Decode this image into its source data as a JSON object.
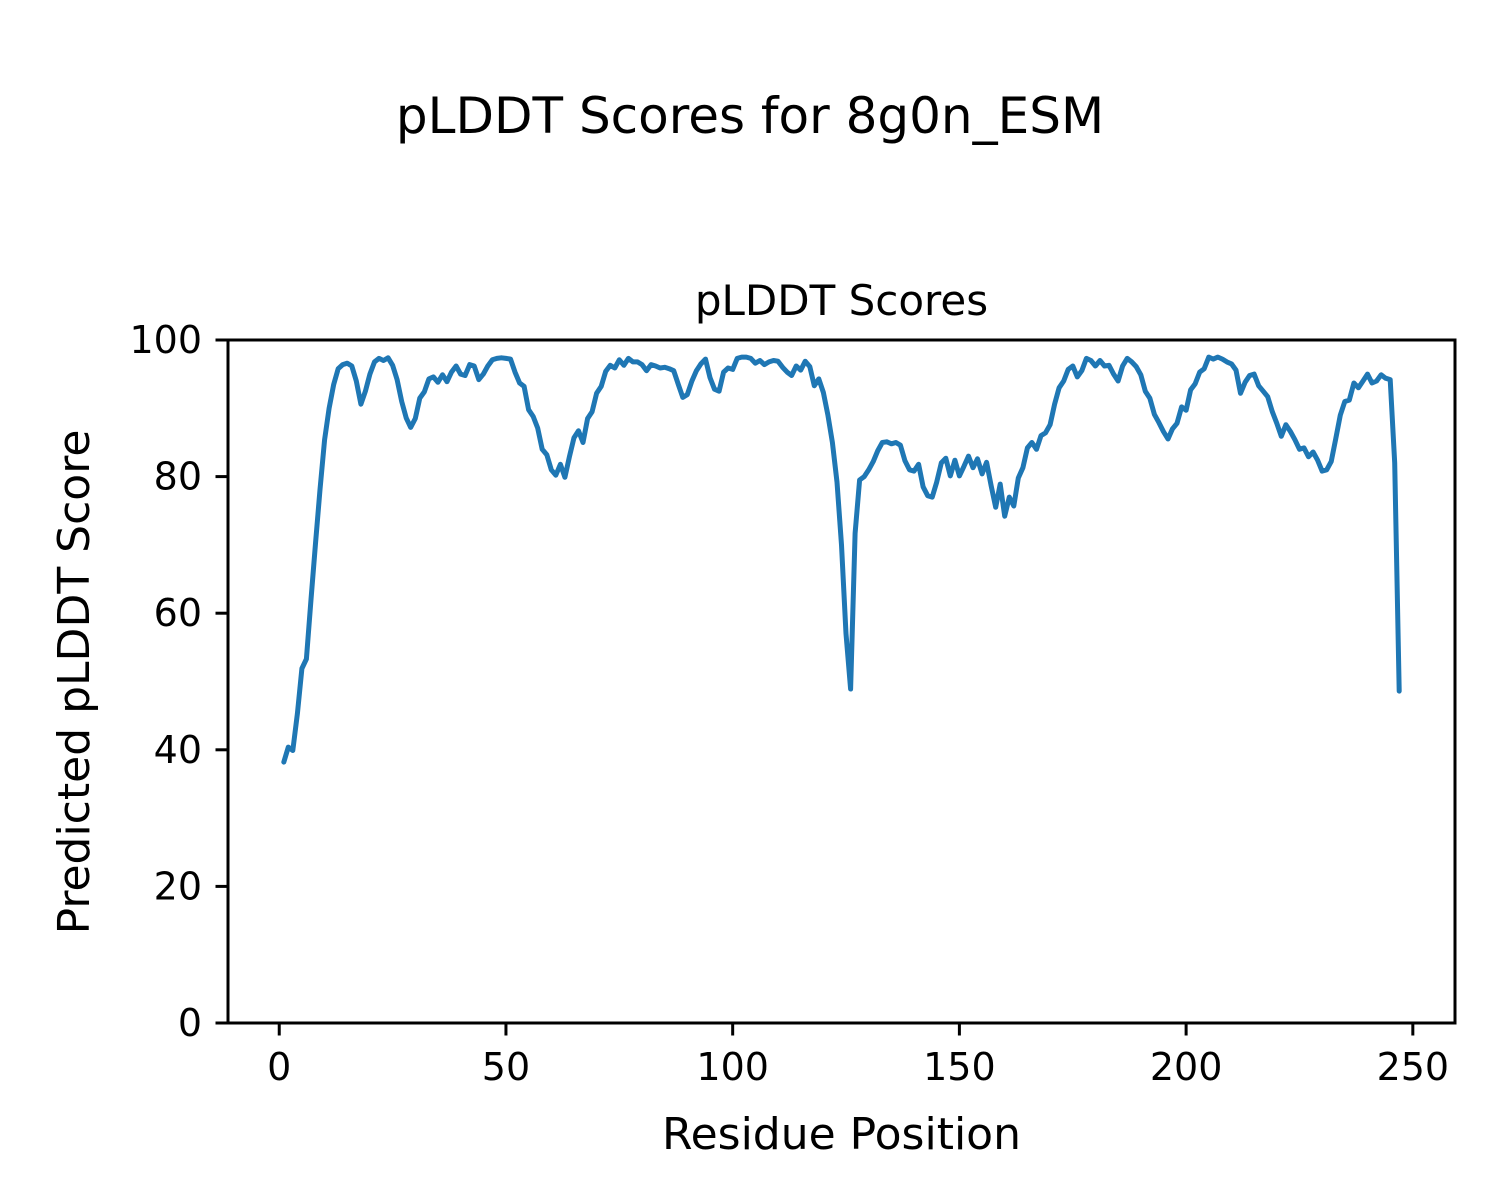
{
  "figure": {
    "suptitle": "pLDDT Scores for 8g0n_ESM",
    "background_color": "#ffffff",
    "text_color": "#000000"
  },
  "chart_data": {
    "type": "line",
    "title": "pLDDT Scores",
    "xlabel": "Residue Position",
    "ylabel": "Predicted pLDDT Score",
    "series_name": "pLDDT",
    "line_color": "#1f77b4",
    "grid": false,
    "legend_position": "none",
    "xlim": [
      -11.3,
      259.3
    ],
    "ylim": [
      0,
      100
    ],
    "xticks": [
      0,
      50,
      100,
      150,
      200,
      250
    ],
    "yticks": [
      0,
      20,
      40,
      60,
      80,
      100
    ],
    "x": [
      1,
      2,
      3,
      4,
      5,
      6,
      7,
      8,
      9,
      10,
      11,
      12,
      13,
      14,
      15,
      16,
      17,
      18,
      19,
      20,
      21,
      22,
      23,
      24,
      25,
      26,
      27,
      28,
      29,
      30,
      31,
      32,
      33,
      34,
      35,
      36,
      37,
      38,
      39,
      40,
      41,
      42,
      43,
      44,
      45,
      46,
      47,
      48,
      49,
      50,
      51,
      52,
      53,
      54,
      55,
      56,
      57,
      58,
      59,
      60,
      61,
      62,
      63,
      64,
      65,
      66,
      67,
      68,
      69,
      70,
      71,
      72,
      73,
      74,
      75,
      76,
      77,
      78,
      79,
      80,
      81,
      82,
      83,
      84,
      85,
      86,
      87,
      88,
      89,
      90,
      91,
      92,
      93,
      94,
      95,
      96,
      97,
      98,
      99,
      100,
      101,
      102,
      103,
      104,
      105,
      106,
      107,
      108,
      109,
      110,
      111,
      112,
      113,
      114,
      115,
      116,
      117,
      118,
      119,
      120,
      121,
      122,
      123,
      124,
      125,
      126,
      127,
      128,
      129,
      130,
      131,
      132,
      133,
      134,
      135,
      136,
      137,
      138,
      139,
      140,
      141,
      142,
      143,
      144,
      145,
      146,
      147,
      148,
      149,
      150,
      151,
      152,
      153,
      154,
      155,
      156,
      157,
      158,
      159,
      160,
      161,
      162,
      163,
      164,
      165,
      166,
      167,
      168,
      169,
      170,
      171,
      172,
      173,
      174,
      175,
      176,
      177,
      178,
      179,
      180,
      181,
      182,
      183,
      184,
      185,
      186,
      187,
      188,
      189,
      190,
      191,
      192,
      193,
      194,
      195,
      196,
      197,
      198,
      199,
      200,
      201,
      202,
      203,
      204,
      205,
      206,
      207,
      208,
      209,
      210,
      211,
      212,
      213,
      214,
      215,
      216,
      217,
      218,
      219,
      220,
      221,
      222,
      223,
      224,
      225,
      226,
      227,
      228,
      229,
      230,
      231,
      232,
      233,
      234,
      235,
      236,
      237,
      238,
      239,
      240,
      241,
      242,
      243,
      244,
      245,
      246,
      247
    ],
    "y": [
      38.2,
      40.4,
      39.9,
      45.3,
      51.9,
      53.3,
      62.0,
      70.2,
      78.1,
      85.4,
      90.0,
      93.5,
      95.8,
      96.4,
      96.6,
      96.2,
      94.0,
      90.6,
      92.5,
      95.0,
      96.8,
      97.3,
      97.0,
      97.4,
      96.3,
      94.2,
      91.0,
      88.6,
      87.2,
      88.5,
      91.5,
      92.4,
      94.3,
      94.6,
      93.8,
      94.9,
      93.9,
      95.3,
      96.2,
      95.0,
      94.8,
      96.4,
      96.2,
      94.2,
      95.0,
      96.2,
      97.1,
      97.3,
      97.4,
      97.3,
      97.2,
      95.3,
      93.7,
      93.2,
      89.8,
      88.8,
      87.1,
      84.0,
      83.2,
      81.0,
      80.2,
      81.8,
      79.9,
      82.9,
      85.7,
      86.7,
      85.0,
      88.5,
      89.5,
      92.2,
      93.2,
      95.4,
      96.3,
      95.9,
      97.1,
      96.3,
      97.3,
      96.8,
      96.8,
      96.4,
      95.5,
      96.4,
      96.2,
      95.9,
      96.0,
      95.8,
      95.5,
      93.5,
      91.6,
      92.0,
      94.0,
      95.5,
      96.5,
      97.2,
      94.5,
      92.8,
      92.5,
      95.3,
      95.9,
      95.7,
      97.3,
      97.5,
      97.5,
      97.3,
      96.6,
      97.0,
      96.4,
      96.8,
      97.0,
      96.9,
      96.0,
      95.3,
      94.8,
      96.2,
      95.6,
      96.9,
      96.1,
      93.3,
      94.3,
      92.3,
      89.0,
      85.0,
      79.2,
      70.0,
      57.0,
      48.9,
      71.7,
      79.5,
      80.0,
      81.0,
      82.2,
      83.8,
      85.0,
      85.1,
      84.8,
      85.0,
      84.6,
      82.3,
      81.0,
      80.8,
      81.8,
      78.5,
      77.2,
      77.0,
      79.2,
      82.0,
      82.7,
      80.1,
      82.4,
      80.1,
      81.5,
      83.0,
      81.3,
      82.6,
      80.4,
      82.1,
      78.7,
      75.5,
      78.9,
      74.2,
      77.0,
      75.7,
      79.8,
      81.3,
      84.2,
      85.0,
      84.0,
      86.0,
      86.4,
      87.6,
      90.6,
      93.0,
      94.0,
      95.7,
      96.2,
      94.6,
      95.5,
      97.3,
      97.0,
      96.2,
      97.0,
      96.2,
      96.3,
      95.0,
      94.0,
      96.2,
      97.3,
      96.8,
      96.1,
      94.9,
      92.5,
      91.5,
      89.1,
      87.9,
      86.6,
      85.5,
      87.0,
      87.8,
      90.2,
      89.7,
      92.7,
      93.6,
      95.3,
      95.8,
      97.5,
      97.2,
      97.5,
      97.2,
      96.8,
      96.5,
      95.6,
      92.2,
      93.8,
      94.8,
      95.0,
      93.3,
      92.5,
      91.7,
      89.5,
      87.8,
      85.9,
      87.6,
      86.6,
      85.4,
      84.0,
      84.2,
      82.9,
      83.6,
      82.4,
      80.8,
      81.0,
      82.2,
      85.5,
      89.0,
      91.0,
      91.2,
      93.7,
      93.0,
      94.0,
      95.0,
      93.7,
      94.0,
      94.9,
      94.4,
      94.2,
      82.0,
      48.6
    ]
  }
}
